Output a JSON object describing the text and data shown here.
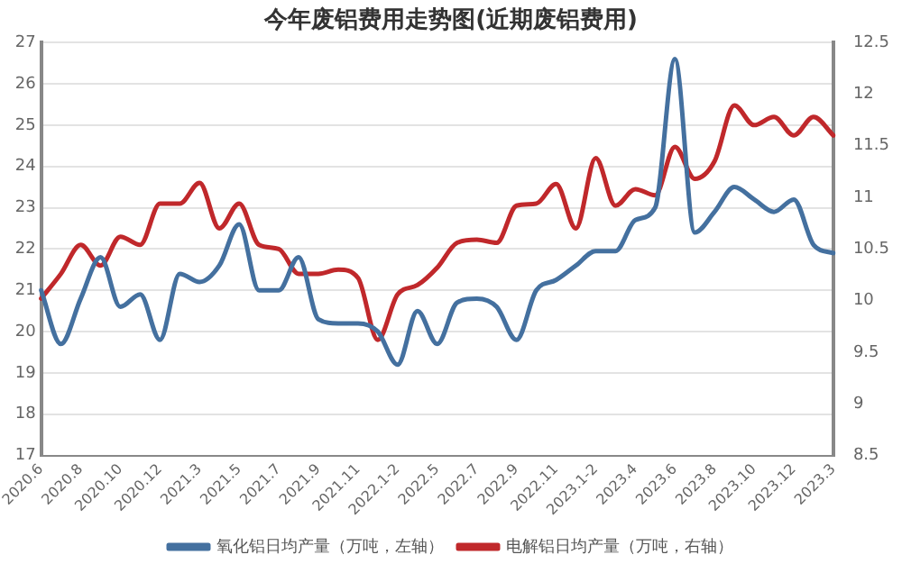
{
  "chart_data": {
    "type": "line",
    "title": "今年废铝费用走势图(近期废铝费用)",
    "categories": [
      "2020.6",
      null,
      "2020.8",
      null,
      "2020.10",
      null,
      "2020.12",
      null,
      "2021.3",
      null,
      "2021.5",
      null,
      "2021.7",
      null,
      "2021.9",
      null,
      "2021.11",
      null,
      "2022.1-2",
      null,
      "2022.5",
      null,
      "2022.7",
      null,
      "2022.9",
      null,
      "2022.11",
      null,
      "2023.1-2",
      null,
      "2023.4",
      null,
      "2023.6",
      null,
      "2023.8",
      null,
      "2023.10",
      null,
      "2023.12",
      null,
      "2023.3"
    ],
    "series": [
      {
        "name": "氧化铝日均产量（万吨，左轴）",
        "color": "#44709f",
        "values": [
          21.0,
          19.7,
          20.8,
          21.8,
          20.6,
          20.9,
          19.8,
          21.4,
          21.2,
          21.6,
          22.6,
          21.0,
          21.0,
          21.8,
          20.3,
          20.2,
          20.2,
          20.0,
          19.2,
          20.5,
          19.7,
          20.7,
          20.8,
          20.6,
          19.8,
          21.0,
          21.25,
          21.6,
          21.95,
          21.95,
          22.7,
          23.0,
          26.6,
          22.4,
          22.9,
          23.5,
          23.2,
          22.9,
          23.2,
          22.1,
          21.9
        ]
      },
      {
        "name": "电解铝日均产量（万吨，右轴）",
        "color": "#c0282b",
        "axis": "y2",
        "values": [
          10.02,
          10.26,
          10.54,
          10.34,
          10.62,
          10.54,
          10.94,
          10.94,
          11.14,
          10.7,
          10.94,
          10.54,
          10.5,
          10.26,
          10.26,
          10.3,
          10.22,
          9.62,
          10.06,
          10.15,
          10.32,
          10.56,
          10.59,
          10.56,
          10.92,
          10.94,
          11.13,
          10.7,
          11.38,
          10.92,
          11.08,
          11.02,
          11.49,
          11.18,
          11.35,
          11.89,
          11.7,
          11.78,
          11.6,
          11.78,
          11.6
        ]
      }
    ],
    "ylim": [
      17,
      27
    ],
    "yticks": [
      17,
      18,
      19,
      20,
      21,
      22,
      23,
      24,
      25,
      26,
      27
    ],
    "y2lim": [
      8.5,
      12.5
    ],
    "y2ticks": [
      8.5,
      9,
      9.5,
      10,
      10.5,
      11,
      11.5,
      12,
      12.5
    ],
    "grid": "y",
    "legend": "bottom",
    "marker": "none",
    "line_style": "solid"
  }
}
